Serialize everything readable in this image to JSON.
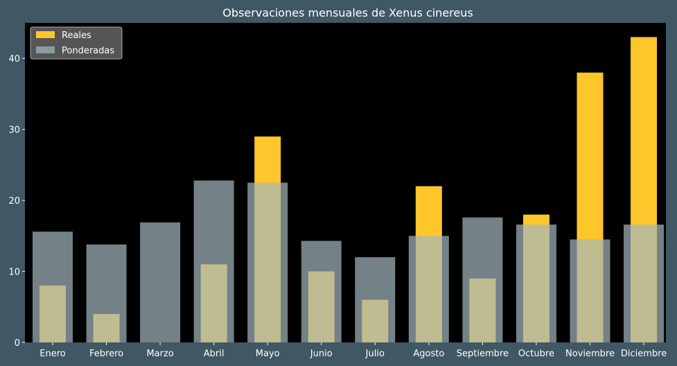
{
  "chart_data": {
    "type": "bar",
    "title": "Observaciones mensuales de Xenus cinereus",
    "xlabel": "",
    "ylabel": "",
    "categories": [
      "Enero",
      "Febrero",
      "Marzo",
      "Abril",
      "Mayo",
      "Junio",
      "Julio",
      "Agosto",
      "Septiembre",
      "Octubre",
      "Noviembre",
      "Diciembre"
    ],
    "series": [
      {
        "name": "Reales",
        "color": "#ffc62b",
        "values": [
          8,
          4,
          0,
          11,
          29,
          10,
          6,
          22,
          9,
          18,
          38,
          43
        ]
      },
      {
        "name": "Ponderadas",
        "color": "#a5b8bf",
        "values": [
          15.6,
          13.8,
          16.9,
          22.8,
          22.5,
          14.3,
          12.0,
          15.0,
          17.6,
          16.6,
          14.5,
          16.6
        ]
      }
    ],
    "ylim": [
      0,
      45
    ],
    "yticks": [
      0,
      10,
      20,
      30,
      40
    ],
    "grid": false,
    "legend_position": "top-left",
    "colors": {
      "figure_background": "#405764",
      "plot_background": "#000000",
      "text": "#ffffff"
    }
  }
}
